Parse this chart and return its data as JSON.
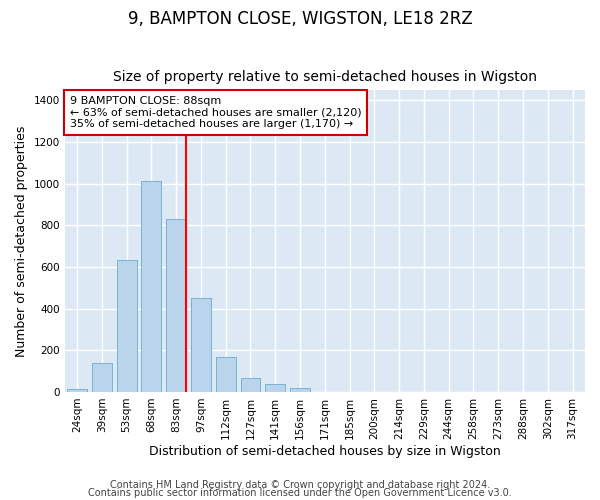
{
  "title": "9, BAMPTON CLOSE, WIGSTON, LE18 2RZ",
  "subtitle": "Size of property relative to semi-detached houses in Wigston",
  "xlabel": "Distribution of semi-detached houses by size in Wigston",
  "ylabel": "Number of semi-detached properties",
  "categories": [
    "24sqm",
    "39sqm",
    "53sqm",
    "68sqm",
    "83sqm",
    "97sqm",
    "112sqm",
    "127sqm",
    "141sqm",
    "156sqm",
    "171sqm",
    "185sqm",
    "200sqm",
    "214sqm",
    "229sqm",
    "244sqm",
    "258sqm",
    "273sqm",
    "288sqm",
    "302sqm",
    "317sqm"
  ],
  "values": [
    12,
    140,
    635,
    1012,
    830,
    450,
    170,
    65,
    40,
    20,
    0,
    0,
    0,
    0,
    0,
    0,
    0,
    0,
    0,
    0,
    0
  ],
  "bar_color": "#bad4ec",
  "bar_edge_color": "#6aabd2",
  "red_line_index": 4,
  "annotation_line1": "9 BAMPTON CLOSE: 88sqm",
  "annotation_line2": "← 63% of semi-detached houses are smaller (2,120)",
  "annotation_line3": "35% of semi-detached houses are larger (1,170) →",
  "annotation_box_facecolor": "#ffffff",
  "annotation_box_edgecolor": "#cc0000",
  "ylim": [
    0,
    1450
  ],
  "yticks": [
    0,
    200,
    400,
    600,
    800,
    1000,
    1200,
    1400
  ],
  "figure_bg": "#ffffff",
  "axes_bg": "#dce9f5",
  "grid_color": "#ffffff",
  "title_fontsize": 12,
  "subtitle_fontsize": 10,
  "axis_label_fontsize": 9,
  "tick_fontsize": 7.5,
  "annotation_fontsize": 8,
  "footer_fontsize": 7,
  "footer1": "Contains HM Land Registry data © Crown copyright and database right 2024.",
  "footer2": "Contains public sector information licensed under the Open Government Licence v3.0."
}
